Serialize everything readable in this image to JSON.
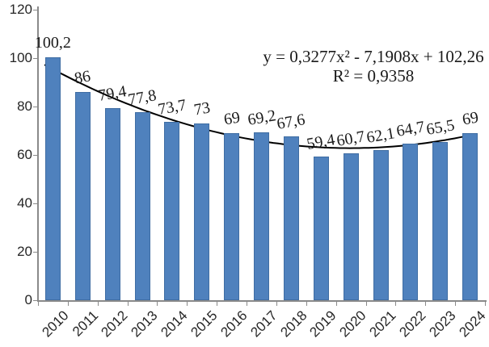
{
  "chart_data": {
    "type": "bar",
    "title": "",
    "xlabel": "",
    "ylabel": "",
    "categories": [
      "2010",
      "2011",
      "2012",
      "2013",
      "2014",
      "2015",
      "2016",
      "2017",
      "2018",
      "2019",
      "2020",
      "2021",
      "2022",
      "2023",
      "2024"
    ],
    "values": [
      100.2,
      86,
      79.4,
      77.8,
      73.7,
      73,
      69,
      69.2,
      67.6,
      59.4,
      60.7,
      62.1,
      64.7,
      65.5,
      69
    ],
    "value_labels": [
      "100,2",
      "86",
      "79,4",
      "77,8",
      "73,7",
      "73",
      "69",
      "69,2",
      "67,6",
      "59,4",
      "60,7",
      "62,1",
      "64,7",
      "65,5",
      "69"
    ],
    "y_ticks": [
      0,
      20,
      40,
      60,
      80,
      100,
      120
    ],
    "ylim": [
      0,
      120
    ],
    "grid": false,
    "legend": false,
    "bar_color": "#4f81bd",
    "bar_border_color": "#3f6da3",
    "axis_color": "#8a8a8a",
    "trendline": {
      "type": "polynomial",
      "order": 2,
      "coefficients": {
        "a": 0.3277,
        "b": -7.1908,
        "c": 102.26
      },
      "equation_label": "y = 0,3277x² - 7,1908x + 102,26",
      "r_squared_label": "R² = 0,9358",
      "color": "#000000"
    }
  }
}
